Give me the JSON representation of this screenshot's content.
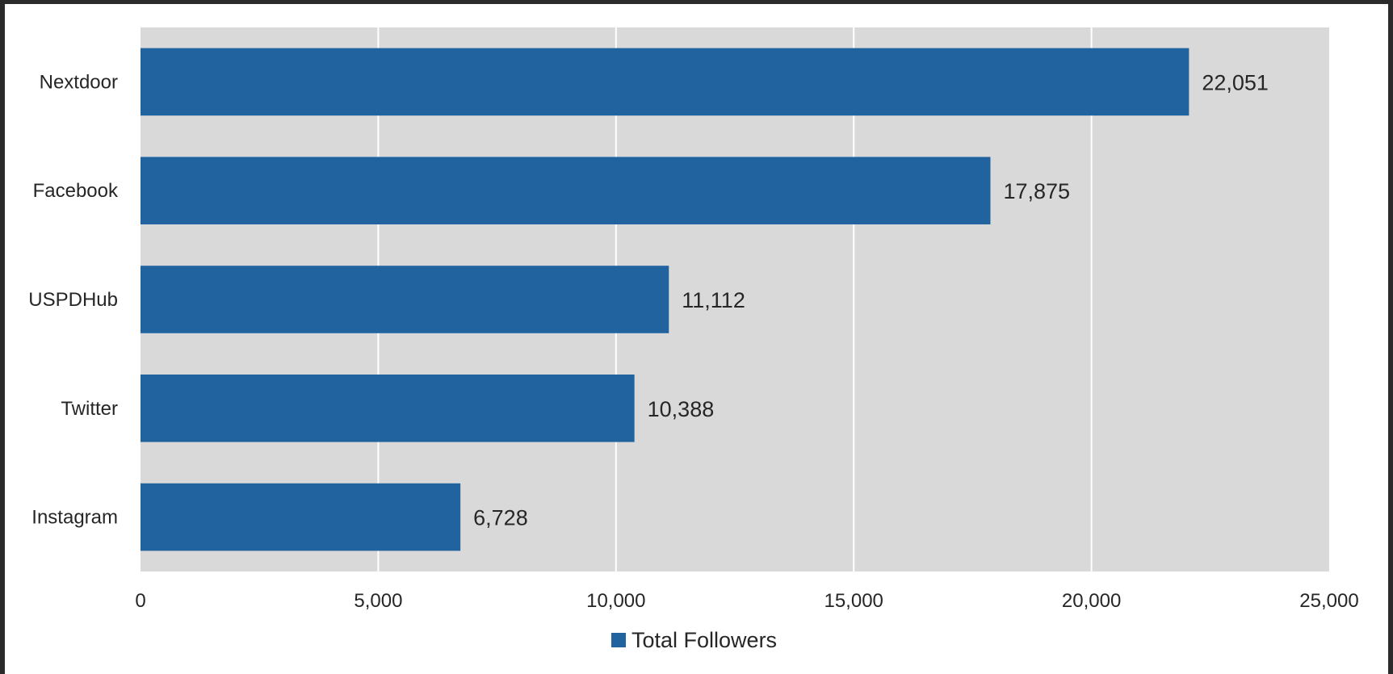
{
  "chart_data": {
    "type": "bar",
    "orientation": "horizontal",
    "title": "",
    "xlabel": "",
    "ylabel": "",
    "categories": [
      "Nextdoor",
      "Facebook",
      "USPDHub",
      "Twitter",
      "Instagram"
    ],
    "series": [
      {
        "name": "Total Followers",
        "values": [
          22051,
          17875,
          11112,
          10388,
          6728
        ],
        "data_labels": [
          "22,051",
          "17,875",
          "11,112",
          "10,388",
          "6,728"
        ],
        "color": "#21639E"
      }
    ],
    "xlim": [
      0,
      25000
    ],
    "x_ticks": [
      0,
      5000,
      10000,
      15000,
      20000,
      25000
    ],
    "x_tick_labels": [
      "0",
      "5,000",
      "10,000",
      "15,000",
      "20,000",
      "25,000"
    ],
    "grid": true,
    "grid_color": "#ffffff",
    "plot_background": "#D9D9D9",
    "legend_position": "bottom"
  }
}
